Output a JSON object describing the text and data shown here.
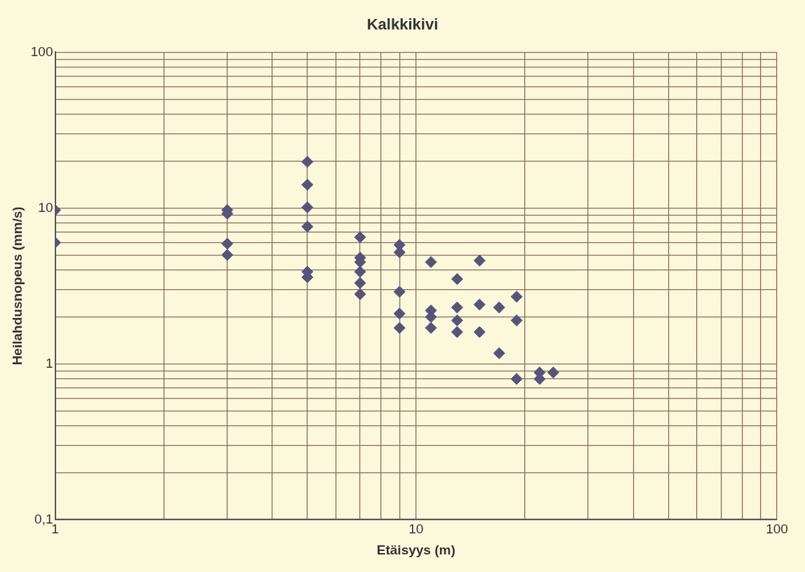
{
  "chart_data": {
    "type": "scatter",
    "title": "Kalkkikivi",
    "xlabel": "Etäisyys (m)",
    "ylabel": "Heilahdusnopeus (mm/s)",
    "log": "xy",
    "grid": true,
    "legend": false,
    "marker": "diamond",
    "xlim": [
      1,
      100
    ],
    "ylim": [
      0.1,
      100
    ],
    "xticks": [
      1,
      {
        "value": 2,
        "label": null
      },
      {
        "value": 3,
        "label": null
      },
      {
        "value": 4,
        "label": null
      },
      {
        "value": 5,
        "label": null
      },
      {
        "value": 6,
        "label": null
      },
      {
        "value": 7,
        "label": null
      },
      {
        "value": 8,
        "label": null
      },
      {
        "value": 9,
        "label": null
      },
      10,
      {
        "value": 20,
        "label": null
      },
      {
        "value": 30,
        "label": null
      },
      {
        "value": 40,
        "label": null
      },
      {
        "value": 50,
        "label": null
      },
      {
        "value": 60,
        "label": null
      },
      {
        "value": 70,
        "label": null
      },
      {
        "value": 80,
        "label": null
      },
      {
        "value": 90,
        "label": null
      },
      100
    ],
    "yticks": [
      {
        "value": 0.1,
        "label": "0,1"
      },
      {
        "value": 0.2,
        "label": null
      },
      {
        "value": 0.3,
        "label": null
      },
      {
        "value": 0.4,
        "label": null
      },
      {
        "value": 0.5,
        "label": null
      },
      {
        "value": 0.6,
        "label": null
      },
      {
        "value": 0.7,
        "label": null
      },
      {
        "value": 0.8,
        "label": null
      },
      {
        "value": 0.9,
        "label": null
      },
      1,
      {
        "value": 2,
        "label": null
      },
      {
        "value": 3,
        "label": null
      },
      {
        "value": 4,
        "label": null
      },
      {
        "value": 5,
        "label": null
      },
      {
        "value": 6,
        "label": null
      },
      {
        "value": 7,
        "label": null
      },
      {
        "value": 8,
        "label": null
      },
      {
        "value": 9,
        "label": null
      },
      10,
      {
        "value": 20,
        "label": null
      },
      {
        "value": 30,
        "label": null
      },
      {
        "value": 40,
        "label": null
      },
      {
        "value": 50,
        "label": null
      },
      {
        "value": 60,
        "label": null
      },
      {
        "value": 70,
        "label": null
      },
      {
        "value": 80,
        "label": null
      },
      {
        "value": 90,
        "label": null
      },
      100
    ],
    "series": [
      {
        "color": "#55557a",
        "x": [
          1,
          1,
          3,
          3,
          3,
          3,
          5,
          5,
          5,
          5,
          5,
          5,
          7,
          7,
          7,
          7,
          7,
          7,
          9,
          9,
          9,
          9,
          9,
          11,
          11,
          11,
          11,
          13,
          13,
          13,
          13,
          15,
          15,
          15,
          17,
          17,
          19,
          19,
          19,
          22,
          22,
          24
        ],
        "values": [
          9.7,
          6.0,
          9.7,
          9.2,
          5.9,
          5.0,
          19.8,
          14.1,
          10.1,
          7.6,
          3.9,
          3.6,
          6.5,
          4.8,
          4.5,
          3.9,
          3.3,
          2.8,
          5.8,
          5.2,
          2.9,
          2.1,
          1.7,
          4.5,
          2.2,
          2.0,
          1.7,
          3.5,
          2.3,
          1.9,
          1.6,
          4.6,
          2.4,
          1.6,
          2.3,
          1.17,
          2.7,
          1.9,
          0.8,
          0.88,
          0.8,
          0.88
        ]
      }
    ]
  }
}
